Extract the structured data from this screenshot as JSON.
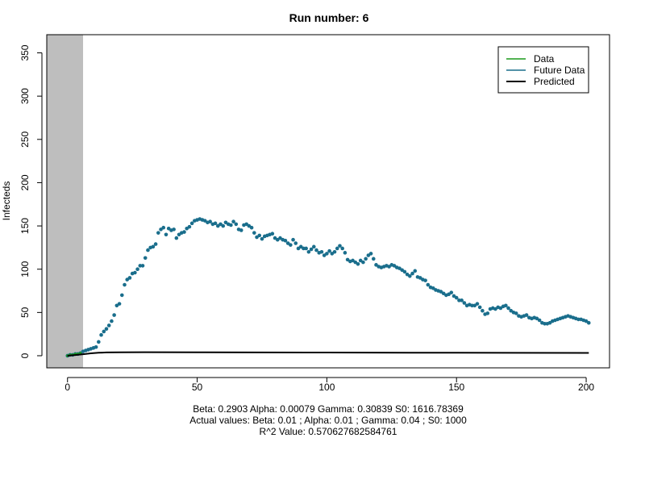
{
  "chart_data": {
    "type": "scatter",
    "title": "Run number:  6",
    "xlabel": "",
    "ylabel": "Infecteds",
    "xlim": [
      -8,
      209
    ],
    "ylim": [
      -14,
      371
    ],
    "x_ticks": [
      0,
      50,
      100,
      150,
      200
    ],
    "y_ticks": [
      0,
      50,
      100,
      150,
      200,
      250,
      300,
      350
    ],
    "shaded_region": {
      "x_from": -8,
      "x_to": 6,
      "color": "#bebebe"
    },
    "grid": false,
    "legend": {
      "position": "top-right",
      "entries": [
        {
          "label": "Data",
          "color": "#1a9a1a"
        },
        {
          "label": "Future Data",
          "color": "#1a6e8c"
        },
        {
          "label": "Predicted",
          "color": "#000000"
        }
      ]
    },
    "series": [
      {
        "name": "Data",
        "kind": "points",
        "color": "#1a9a1a",
        "x": [
          0,
          1,
          2,
          3,
          4,
          5
        ],
        "y": [
          0,
          1,
          1,
          2,
          2,
          3
        ]
      },
      {
        "name": "Future Data",
        "kind": "points",
        "color": "#1a6e8c",
        "x": [
          0,
          1,
          2,
          3,
          4,
          5,
          6,
          7,
          8,
          9,
          10,
          11,
          12,
          13,
          14,
          15,
          16,
          17,
          18,
          19,
          20,
          21,
          22,
          23,
          24,
          25,
          26,
          27,
          28,
          29,
          30,
          31,
          32,
          33,
          34,
          35,
          36,
          37,
          38,
          39,
          40,
          41,
          42,
          43,
          44,
          45,
          46,
          47,
          48,
          49,
          50,
          51,
          52,
          53,
          54,
          55,
          56,
          57,
          58,
          59,
          60,
          61,
          62,
          63,
          64,
          65,
          66,
          67,
          68,
          69,
          70,
          71,
          72,
          73,
          74,
          75,
          76,
          77,
          78,
          79,
          80,
          81,
          82,
          83,
          84,
          85,
          86,
          87,
          88,
          89,
          90,
          91,
          92,
          93,
          94,
          95,
          96,
          97,
          98,
          99,
          100,
          101,
          102,
          103,
          104,
          105,
          106,
          107,
          108,
          109,
          110,
          111,
          112,
          113,
          114,
          115,
          116,
          117,
          118,
          119,
          120,
          121,
          122,
          123,
          124,
          125,
          126,
          127,
          128,
          129,
          130,
          131,
          132,
          133,
          134,
          135,
          136,
          137,
          138,
          139,
          140,
          141,
          142,
          143,
          144,
          145,
          146,
          147,
          148,
          149,
          150,
          151,
          152,
          153,
          154,
          155,
          156,
          157,
          158,
          159,
          160,
          161,
          162,
          163,
          164,
          165,
          166,
          167,
          168,
          169,
          170,
          171,
          172,
          173,
          174,
          175,
          176,
          177,
          178,
          179,
          180,
          181,
          182,
          183,
          184,
          185,
          186,
          187,
          188,
          189,
          190,
          191,
          192,
          193,
          194,
          195,
          196,
          197,
          198,
          199,
          200,
          201
        ],
        "y": [
          0,
          1,
          1,
          2,
          2,
          3,
          5,
          6,
          7,
          8,
          9,
          10,
          16,
          24,
          28,
          31,
          35,
          40,
          47,
          58,
          60,
          70,
          82,
          88,
          90,
          95,
          96,
          100,
          104,
          104,
          113,
          122,
          125,
          126,
          129,
          142,
          146,
          148,
          140,
          147,
          145,
          146,
          136,
          140,
          142,
          143,
          147,
          149,
          153,
          156,
          157,
          158,
          157,
          156,
          154,
          155,
          152,
          153,
          150,
          152,
          150,
          154,
          152,
          151,
          155,
          152,
          146,
          145,
          151,
          152,
          150,
          148,
          142,
          137,
          139,
          135,
          138,
          139,
          140,
          141,
          136,
          134,
          136,
          134,
          133,
          130,
          128,
          134,
          130,
          124,
          126,
          124,
          124,
          120,
          123,
          126,
          122,
          119,
          120,
          116,
          118,
          121,
          118,
          120,
          124,
          127,
          124,
          119,
          111,
          109,
          110,
          108,
          106,
          110,
          108,
          112,
          116,
          118,
          112,
          105,
          103,
          102,
          103,
          104,
          103,
          105,
          104,
          102,
          101,
          99,
          97,
          94,
          92,
          95,
          98,
          91,
          90,
          88,
          87,
          82,
          79,
          78,
          76,
          75,
          74,
          72,
          70,
          71,
          73,
          69,
          67,
          64,
          64,
          61,
          58,
          59,
          58,
          58,
          60,
          56,
          52,
          48,
          49,
          54,
          55,
          54,
          56,
          55,
          57,
          58,
          55,
          52,
          50,
          49,
          46,
          45,
          46,
          47,
          44,
          43,
          44,
          43,
          41,
          38,
          37,
          37,
          38,
          40,
          41,
          42,
          43,
          44,
          45,
          46,
          45,
          44,
          43,
          42,
          42,
          41,
          40,
          38
        ],
        "y_note": ""
      },
      {
        "name": "Predicted",
        "kind": "line",
        "color": "#000000",
        "x": [
          0,
          3,
          6,
          9,
          12,
          15,
          20,
          30,
          50,
          100,
          150,
          201
        ],
        "y": [
          0,
          0.8,
          1.8,
          2.8,
          3.4,
          3.8,
          4.0,
          4.1,
          4.0,
          3.7,
          3.4,
          3.2
        ]
      }
    ]
  },
  "captions": [
    "Beta:  0.2903 Alpha:  0.00079 Gamma:  0.30839 S0:  1616.78369",
    "Actual values: Beta:  0.01 ; Alpha:  0.01 ; Gamma:  0.04 ; S0:  1000",
    "R^2 Value:  0.570627682584761"
  ]
}
